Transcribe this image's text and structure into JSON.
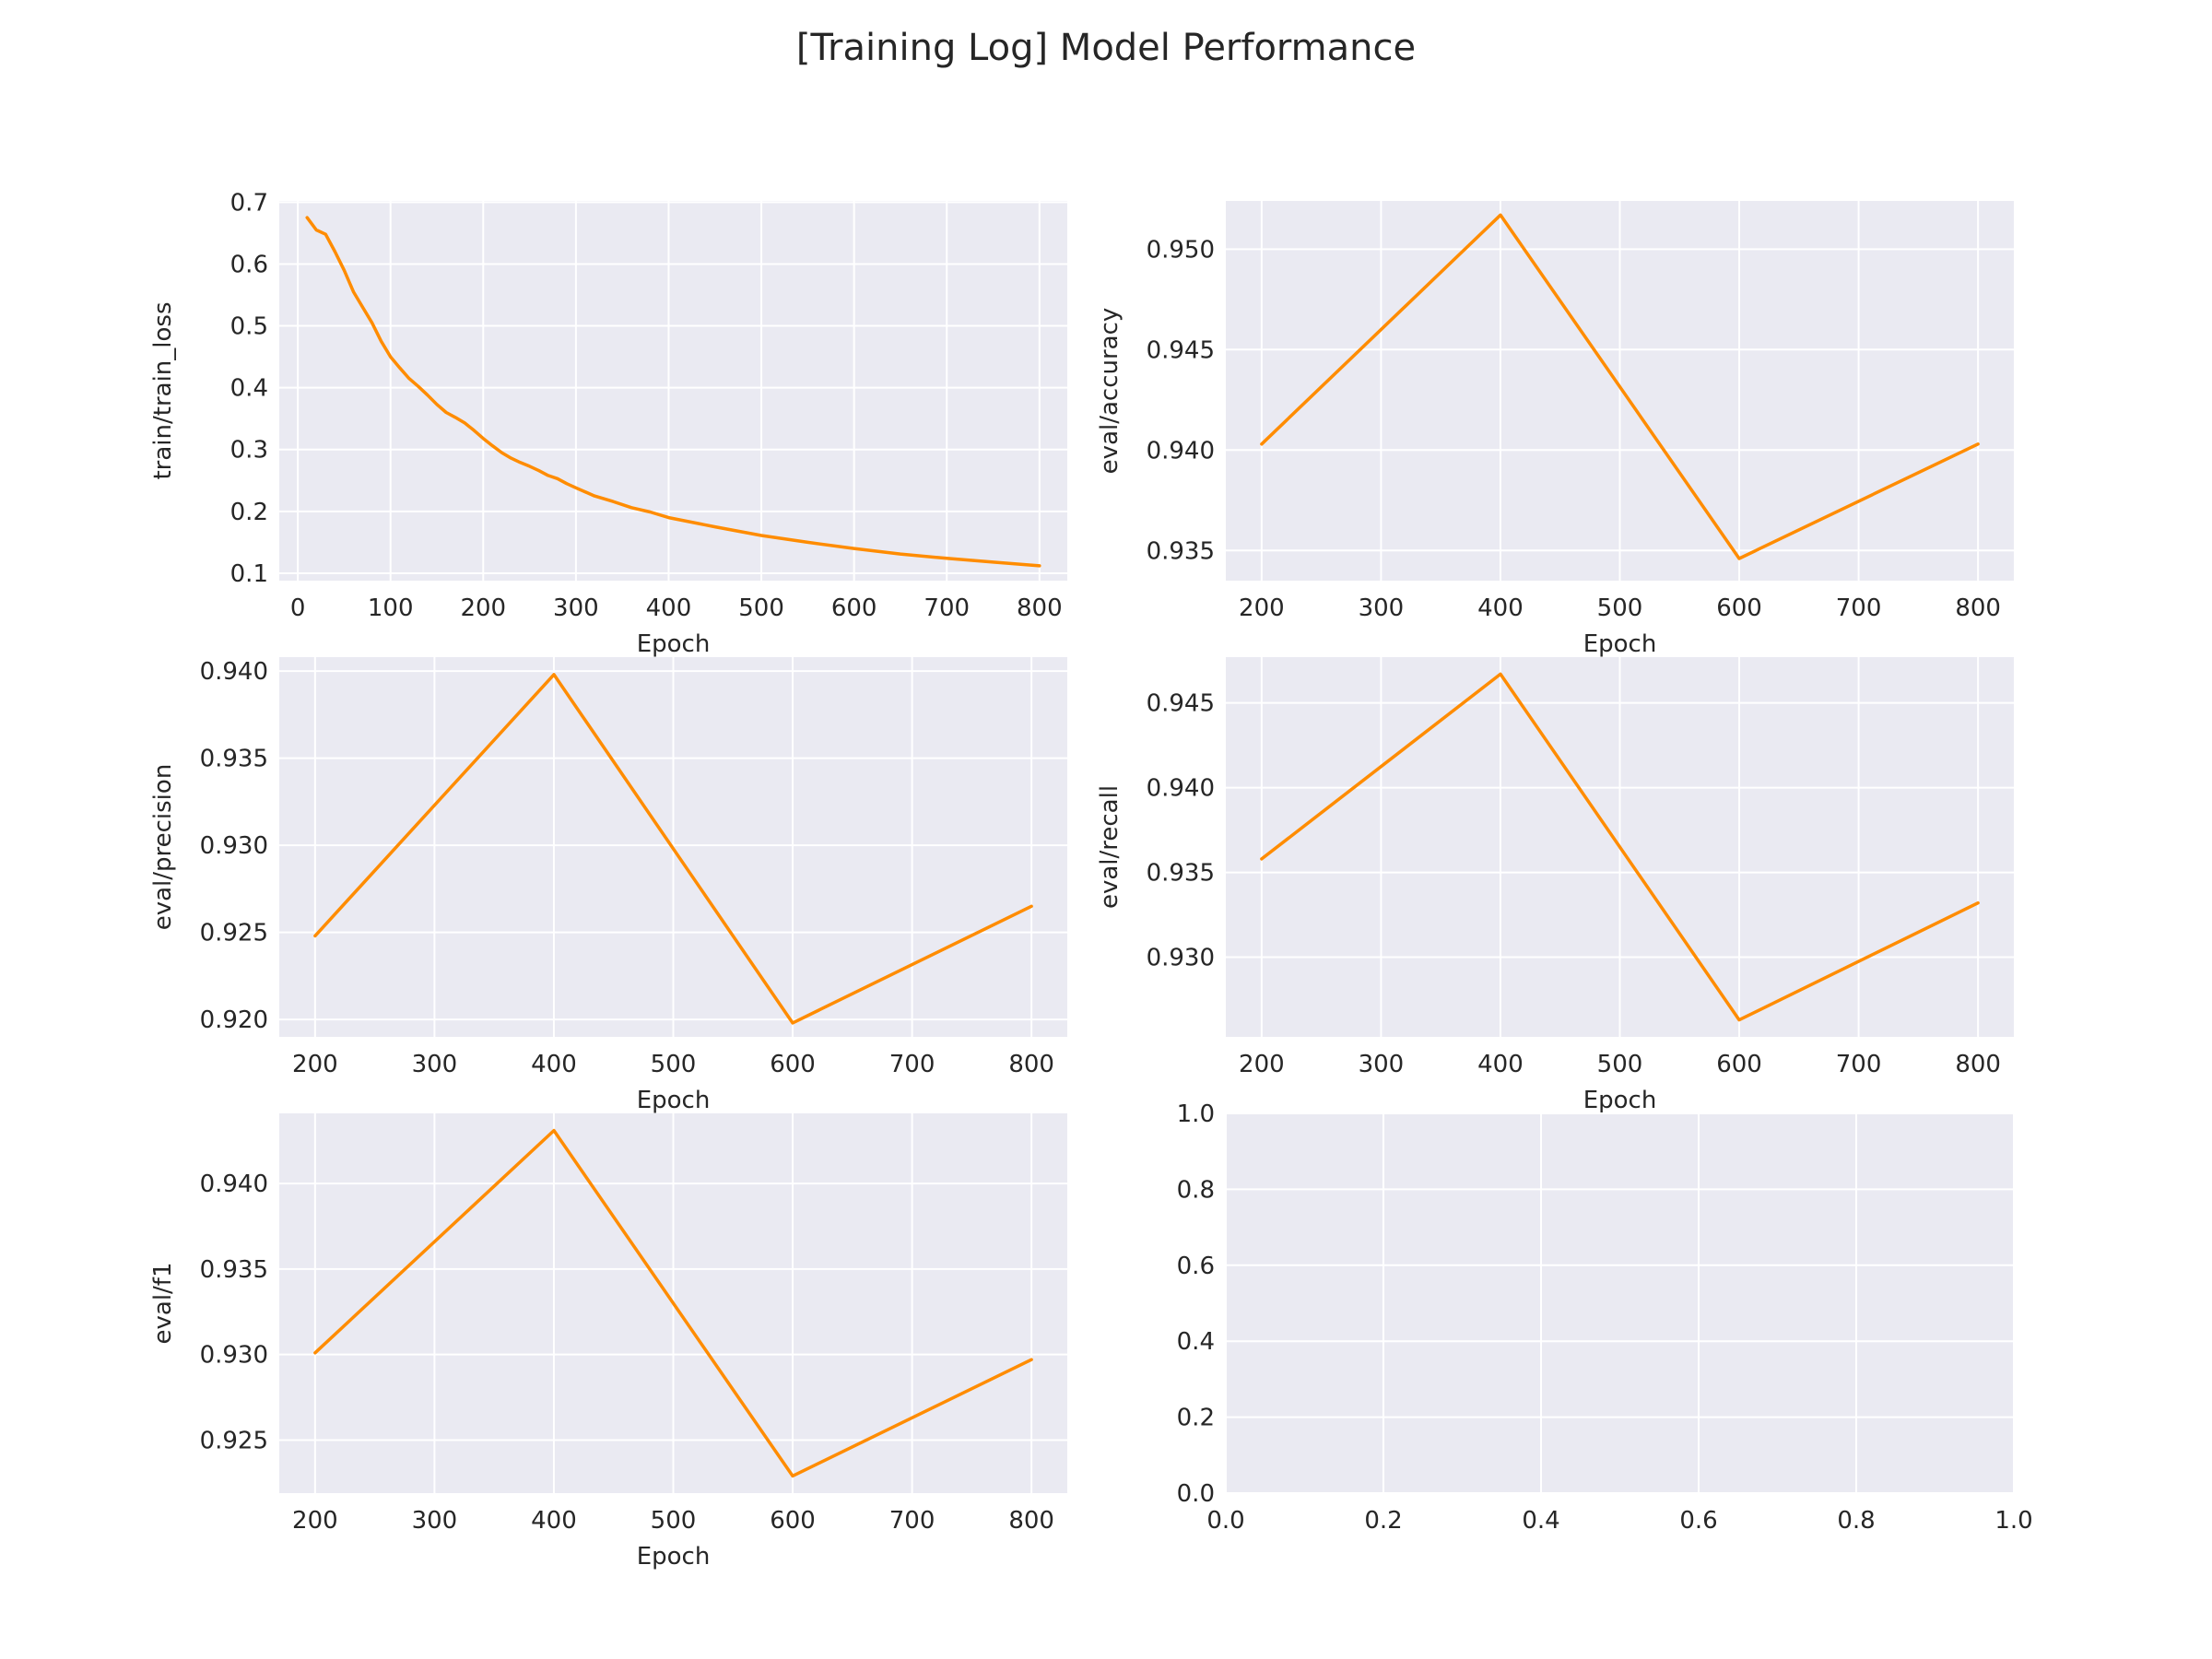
{
  "figure": {
    "title": "[Training Log] Model Performance",
    "line_color": "#ff8c00",
    "background_color": "#eaeaf2",
    "grid_color": "#ffffff",
    "grid": true
  },
  "chart_data": [
    {
      "type": "line",
      "xlabel": "Epoch",
      "ylabel": "train/train_loss",
      "xlim": [
        -20,
        830
      ],
      "ylim": [
        0.088,
        0.702
      ],
      "xticks": [
        0,
        100,
        200,
        300,
        400,
        500,
        600,
        700,
        800
      ],
      "yticks": [
        0.1,
        0.2,
        0.3,
        0.4,
        0.5,
        0.6,
        0.7
      ],
      "ytick_labels": [
        "0.1",
        "0.2",
        "0.3",
        "0.4",
        "0.5",
        "0.6",
        "0.7"
      ],
      "series": [
        {
          "x": [
            10,
            20,
            30,
            40,
            50,
            60,
            70,
            80,
            90,
            100,
            110,
            120,
            130,
            140,
            150,
            160,
            170,
            180,
            190,
            200,
            210,
            220,
            230,
            240,
            250,
            260,
            270,
            280,
            290,
            300,
            320,
            340,
            360,
            380,
            400,
            450,
            500,
            550,
            600,
            650,
            700,
            750,
            800
          ],
          "y": [
            0.675,
            0.655,
            0.648,
            0.62,
            0.59,
            0.555,
            0.53,
            0.505,
            0.475,
            0.45,
            0.432,
            0.415,
            0.402,
            0.388,
            0.373,
            0.36,
            0.352,
            0.343,
            0.331,
            0.318,
            0.306,
            0.295,
            0.286,
            0.279,
            0.273,
            0.266,
            0.258,
            0.253,
            0.245,
            0.238,
            0.225,
            0.216,
            0.206,
            0.199,
            0.19,
            0.175,
            0.161,
            0.15,
            0.14,
            0.131,
            0.124,
            0.118,
            0.112
          ]
        }
      ]
    },
    {
      "type": "line",
      "xlabel": "Epoch",
      "ylabel": "eval/accuracy",
      "xlim": [
        170,
        830
      ],
      "ylim": [
        0.9335,
        0.9524
      ],
      "xticks": [
        200,
        300,
        400,
        500,
        600,
        700,
        800
      ],
      "yticks": [
        0.935,
        0.94,
        0.945,
        0.95
      ],
      "ytick_labels": [
        "0.935",
        "0.940",
        "0.945",
        "0.950"
      ],
      "series": [
        {
          "x": [
            200,
            400,
            600,
            800
          ],
          "y": [
            0.9403,
            0.9517,
            0.9346,
            0.9403
          ]
        }
      ]
    },
    {
      "type": "line",
      "xlabel": "Epoch",
      "ylabel": "eval/precision",
      "xlim": [
        170,
        830
      ],
      "ylim": [
        0.919,
        0.9408
      ],
      "xticks": [
        200,
        300,
        400,
        500,
        600,
        700,
        800
      ],
      "yticks": [
        0.92,
        0.925,
        0.93,
        0.935,
        0.94
      ],
      "ytick_labels": [
        "0.920",
        "0.925",
        "0.930",
        "0.935",
        "0.940"
      ],
      "series": [
        {
          "x": [
            200,
            400,
            600,
            800
          ],
          "y": [
            0.9248,
            0.9398,
            0.9198,
            0.9265
          ]
        }
      ]
    },
    {
      "type": "line",
      "xlabel": "Epoch",
      "ylabel": "eval/recall",
      "xlim": [
        170,
        830
      ],
      "ylim": [
        0.9253,
        0.9477
      ],
      "xticks": [
        200,
        300,
        400,
        500,
        600,
        700,
        800
      ],
      "yticks": [
        0.93,
        0.935,
        0.94,
        0.945
      ],
      "ytick_labels": [
        "0.930",
        "0.935",
        "0.940",
        "0.945"
      ],
      "series": [
        {
          "x": [
            200,
            400,
            600,
            800
          ],
          "y": [
            0.9358,
            0.9467,
            0.9263,
            0.9332
          ]
        }
      ]
    },
    {
      "type": "line",
      "xlabel": "Epoch",
      "ylabel": "eval/f1",
      "xlim": [
        170,
        830
      ],
      "ylim": [
        0.9219,
        0.9441
      ],
      "xticks": [
        200,
        300,
        400,
        500,
        600,
        700,
        800
      ],
      "yticks": [
        0.925,
        0.93,
        0.935,
        0.94
      ],
      "ytick_labels": [
        "0.925",
        "0.930",
        "0.935",
        "0.940"
      ],
      "series": [
        {
          "x": [
            200,
            400,
            600,
            800
          ],
          "y": [
            0.9301,
            0.9431,
            0.9229,
            0.9297
          ]
        }
      ]
    },
    {
      "type": "line",
      "xlabel": "",
      "ylabel": "",
      "xlim": [
        0,
        1
      ],
      "ylim": [
        0,
        1
      ],
      "xticks": [
        0,
        0.2,
        0.4,
        0.6,
        0.8,
        1
      ],
      "xtick_labels": [
        "0.0",
        "0.2",
        "0.4",
        "0.6",
        "0.8",
        "1.0"
      ],
      "yticks": [
        0,
        0.2,
        0.4,
        0.6,
        0.8,
        1
      ],
      "ytick_labels": [
        "0.0",
        "0.2",
        "0.4",
        "0.6",
        "0.8",
        "1.0"
      ],
      "series": []
    }
  ]
}
